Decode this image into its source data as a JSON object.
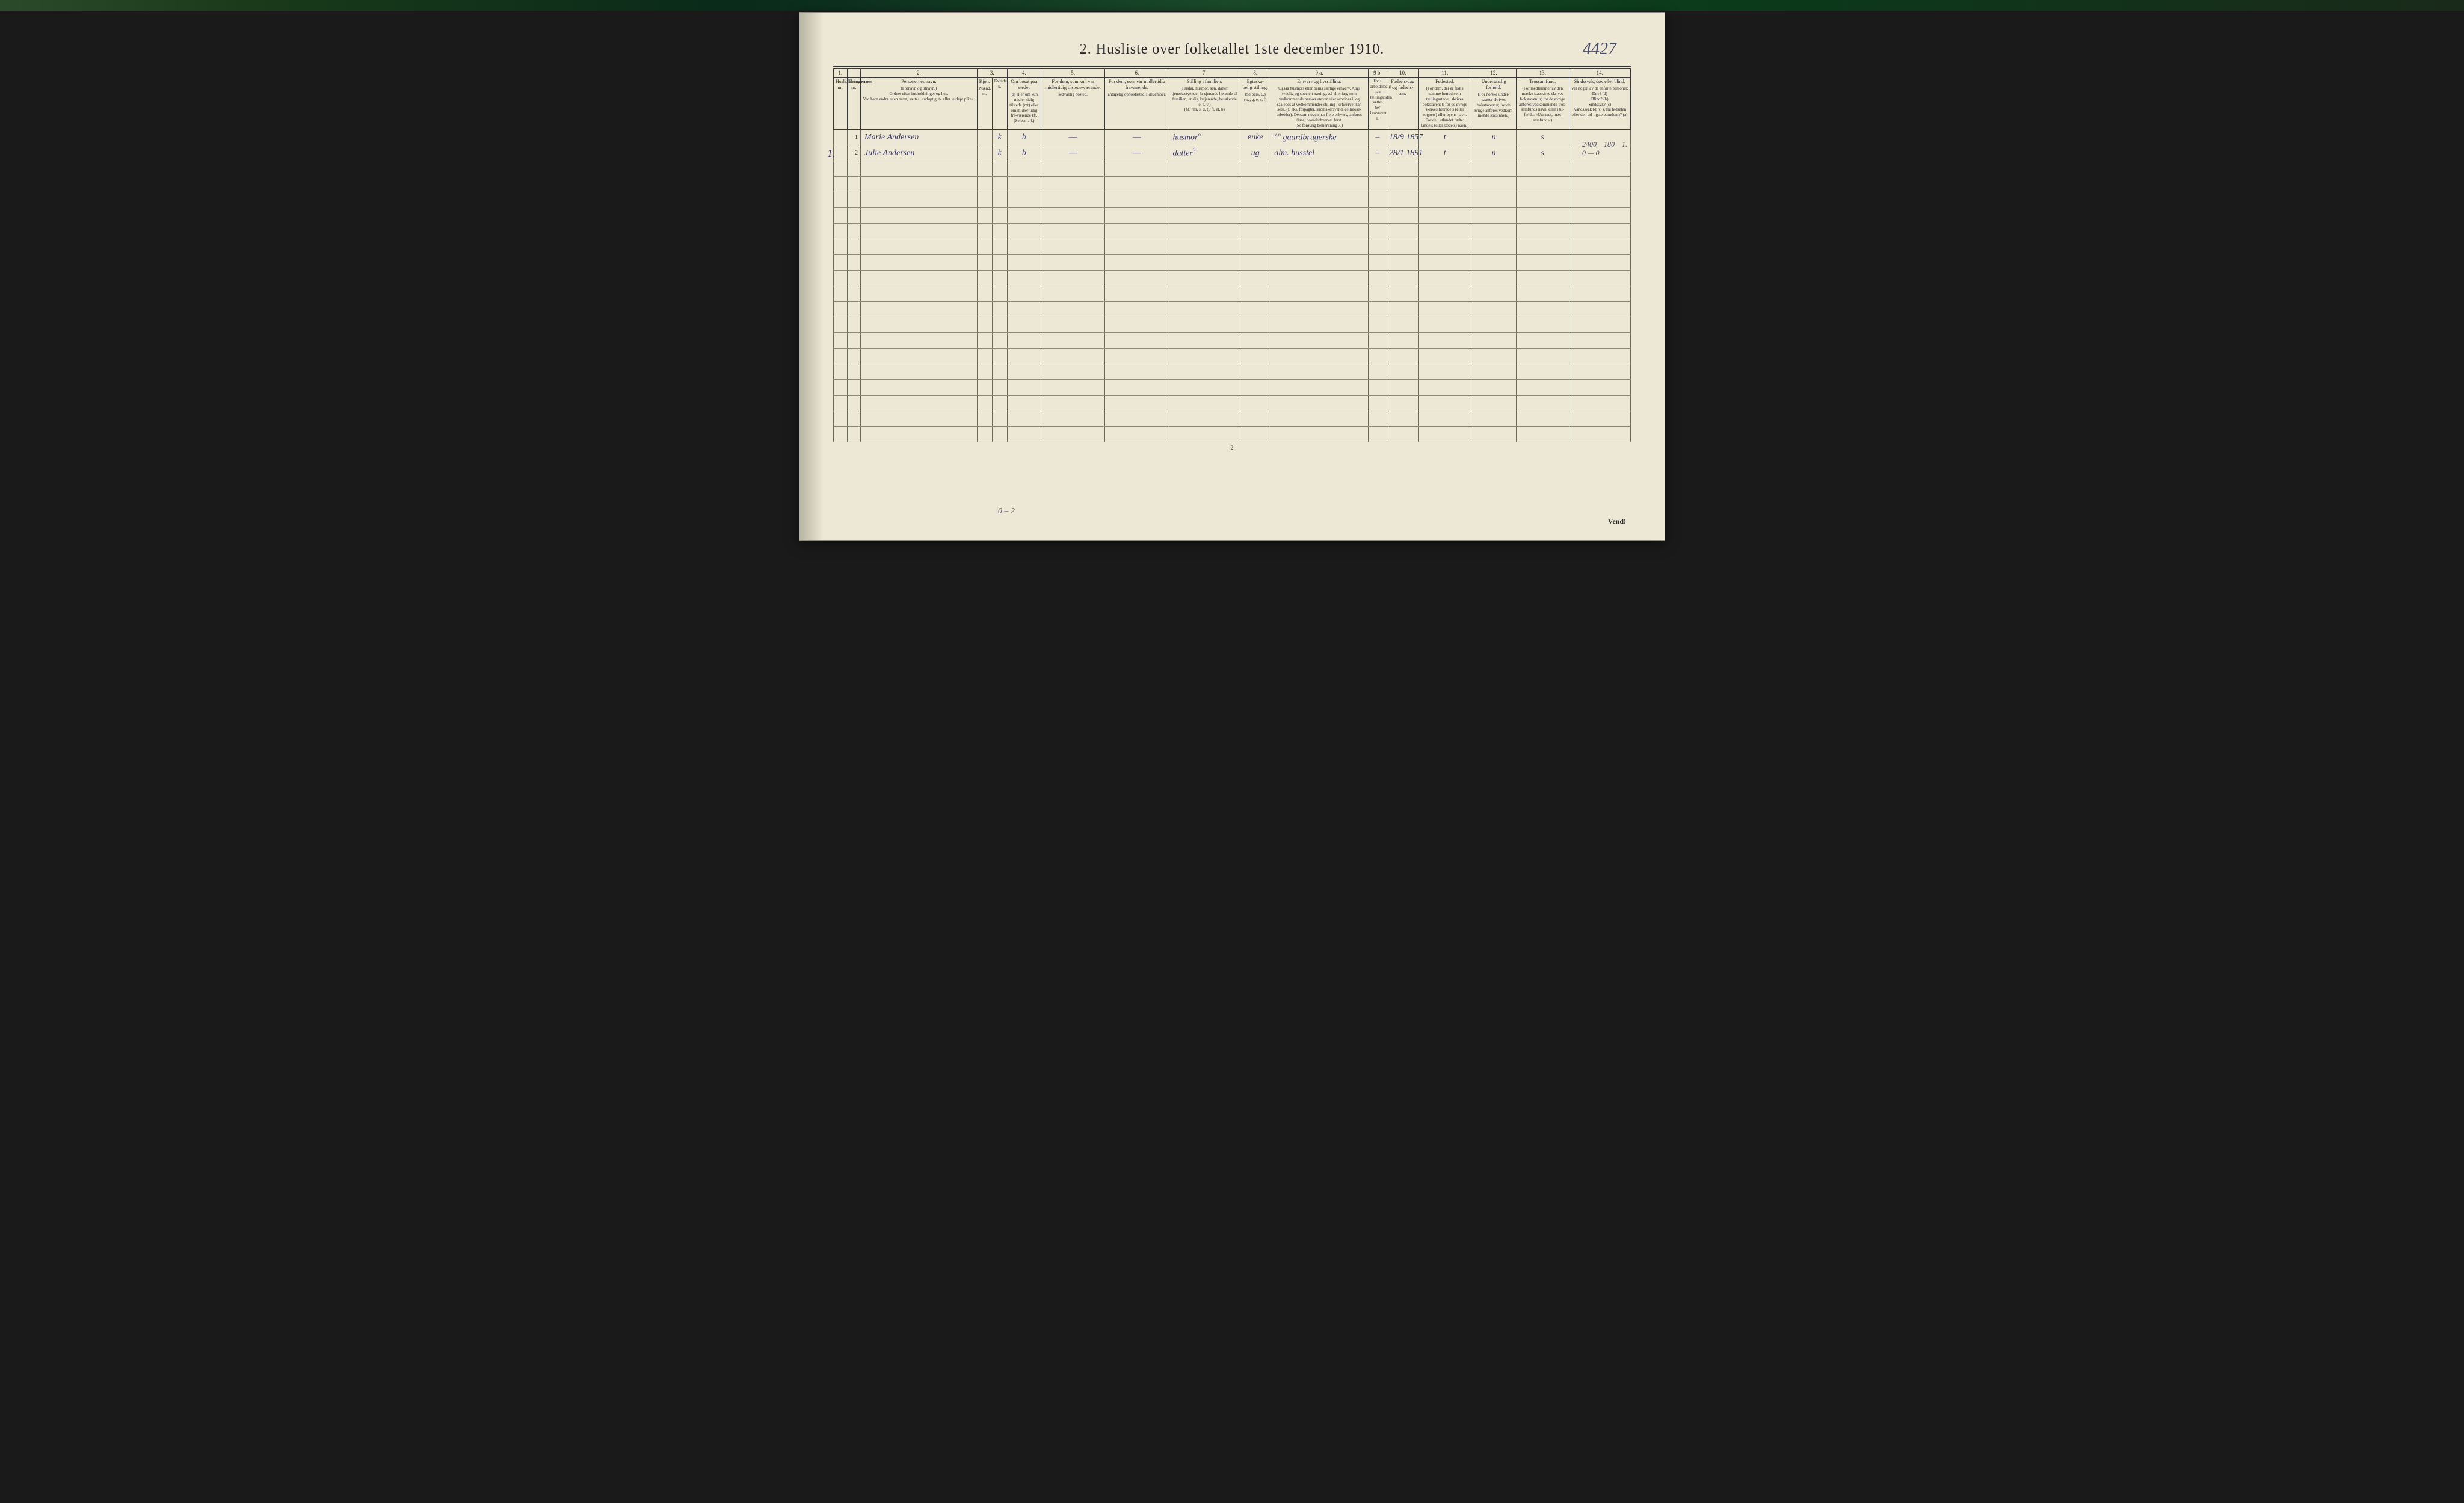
{
  "title": "2.  Husliste over folketallet 1ste december 1910.",
  "handwritten_topright": "4427",
  "household_mark": "1.",
  "page_number": "2",
  "vend": "Vend!",
  "bottom_tally": "0 – 2",
  "margin_note_line1": "2400 – 180 – 1.",
  "margin_note_line2": "0  —  0",
  "colors": {
    "page_bg": "#ede8d5",
    "rule": "#3a3a3a",
    "body_rule": "#8a8a78",
    "ink_print": "#2a2a2a",
    "ink_hand": "#3a3a6a"
  },
  "columns": {
    "nums": [
      "1.",
      "",
      "2.",
      "3.",
      "4.",
      "5.",
      "6.",
      "7.",
      "8.",
      "9 a.",
      "9 b.",
      "10.",
      "11.",
      "12.",
      "13.",
      "14."
    ],
    "widths_pct": [
      1.8,
      1.8,
      15.5,
      2.0,
      2.0,
      4.5,
      8.5,
      8.5,
      9.5,
      4.0,
      13.0,
      2.5,
      4.2,
      7.0,
      6.0,
      7.0,
      8.2
    ],
    "headers": [
      {
        "title": "Husholdningernes nr.",
        "body": ""
      },
      {
        "title": "Personernes nr.",
        "body": ""
      },
      {
        "title": "Personernes navn.",
        "body": "(Fornavn og tilnavn.)\nOrdnet efter husholdninger og hus.\nVed barn endnu uten navn, sættes: «udøpt gut» eller «udøpt pike»."
      },
      {
        "title": "Kjøn.",
        "body": "Mænd.\nm."
      },
      {
        "title": "",
        "body": "Kvinder.\nk."
      },
      {
        "title": "Om bosat paa stedet",
        "body": "(b) eller om kun midler-tidig tilstede (mt) eller om midler-tidig fra-værende (f).\n(Se bem. 4.)"
      },
      {
        "title": "For dem, som kun var midlertidig tilstede-værende:",
        "body": "sedvanlig bosted."
      },
      {
        "title": "For dem, som var midlertidig fraværende:",
        "body": "antagelig opholdssted 1 december."
      },
      {
        "title": "Stilling i familien.",
        "body": "(Husfar, husmor, søn, datter, tjenestestyende, lo-sjerende hørende til familien, enslig losjerende, besøkende o. s. v.)\n(hf, hm, s, d, tj, fl, el, b)"
      },
      {
        "title": "Egteska-belig stilling.",
        "body": "(Se bem. 6.)\n(ug, g, e, s, f)"
      },
      {
        "title": "Erhverv og livsstilling.",
        "body": "Ogsaa husmors eller barns særlige erhverv. Angi tydelig og specielt næringsvei eller fag, som vedkommende person utøver eller arbeider i, og saaledes at vedkommendes stilling i erhvervet kan sees, (f. eks. forpagter, skomakersvend, cellulose-arbeider). Dersom nogen har flere erhverv, anføres disse, hovederhvervet først.\n(Se forøvrig bemerkning 7.)"
      },
      {
        "title": "",
        "body": "Hvis arbeidsledig paa tællingstiden sættes her bokstaven l."
      },
      {
        "title": "Fødsels-dag og fødsels-aar.",
        "body": ""
      },
      {
        "title": "Fødested.",
        "body": "(For dem, der er født i samme herred som tællingsstedet, skrives bokstaven: t; for de øvrige skrives herredets (eller sognets) eller byens navn. For de i utlandet fødte: landets (eller stedets) navn.)"
      },
      {
        "title": "Undersaatlig forhold.",
        "body": "(For norske under-saatter skrives bokstaven: n; for de øvrige anføres vedkom-mende stats navn.)"
      },
      {
        "title": "Trossamfund.",
        "body": "(For medlemmer av den norske statskirke skrives bokstaven: s; for de øvrige anføres vedkommende tros-samfunds navn, eller i til-fælde: «Uttraadt, intet samfund».)"
      },
      {
        "title": "Sindssvak, døv eller blind.",
        "body": "Var nogen av de anførte personer:\nDøv?      (d)\nBlind?    (b)\nSindssyk? (s)\nAandssvak (d. v. s. fra fødselen eller den tid-ligste barndom)? (a)"
      }
    ]
  },
  "rows": [
    {
      "hh": "",
      "pn": "1",
      "name": "Marie Andersen",
      "m": "",
      "k": "k",
      "bosat": "b",
      "mt": "—",
      "fr": "—",
      "fam": "husmor",
      "egte": "enke",
      "erhverv": "gaardbrugerske",
      "led": "–",
      "fdato": "18/9 1857",
      "fsted": "t",
      "und": "n",
      "tro": "s",
      "sind": ""
    },
    {
      "hh": "",
      "pn": "2",
      "name": "Julie Andersen",
      "m": "",
      "k": "k",
      "bosat": "b",
      "mt": "—",
      "fr": "—",
      "fam": "datter",
      "egte": "ug",
      "erhverv": "alm. husstel",
      "led": "–",
      "fdato": "28/1 1891",
      "fsted": "t",
      "und": "n",
      "tro": "s",
      "sind": ""
    }
  ],
  "blank_row_count": 18,
  "overlays": {
    "row1_fam_sup": "o",
    "row1_erhv_pre": "x o",
    "row2_fam_sup": "3"
  }
}
